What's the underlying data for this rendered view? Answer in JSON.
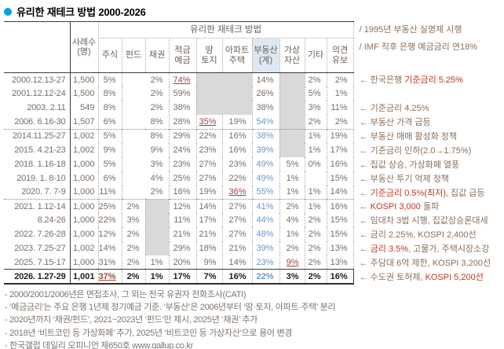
{
  "title": "유리한 재테크 방법 2000-2026",
  "header_notes": [
    "/ 1995년 부동산 실명제 시행",
    "/ IMF 직후 은행 예금금리 연18%"
  ],
  "chart_data": {
    "type": "table",
    "title": "유리한 재테크 방법 2000-2026",
    "group_header": "유리한 재테크 방법",
    "row_header": "사례수\n(명)",
    "columns": [
      {
        "label": "주식"
      },
      {
        "label": "펀드"
      },
      {
        "label": "채권"
      },
      {
        "label": "적금\n예금"
      },
      {
        "label": "땅\n토지"
      },
      {
        "label": "아파트\n주택"
      },
      {
        "label": "부동산\n(계)",
        "highlight": true
      },
      {
        "label": "가상\n자산"
      },
      {
        "label": "기타"
      },
      {
        "label": "의견\n유보"
      }
    ],
    "rows": [
      {
        "date": "2000.12.13-27",
        "n": "1,500",
        "cells": [
          {
            "v": "5%"
          },
          {
            "v": "2%",
            "span": 2
          },
          {
            "v": "74%",
            "s": "red"
          },
          {
            "g": true,
            "span": 2
          },
          {
            "v": "14%"
          },
          {
            "g": true
          },
          {
            "v": "2%"
          },
          {
            "v": "2%"
          }
        ],
        "anno": [
          {
            "t": "← 한국은행 ",
            "c": "brown"
          },
          {
            "t": "기준금리 5.25%",
            "c": "red"
          }
        ]
      },
      {
        "date": "2001.12.12-24",
        "n": "1,500",
        "cells": [
          {
            "v": "8%"
          },
          {
            "v": "2%",
            "span": 2
          },
          {
            "v": "59%"
          },
          {
            "g": true,
            "span": 2
          },
          {
            "v": "26%"
          },
          {
            "g": true
          },
          {
            "v": "5%"
          },
          {
            "v": "1%"
          }
        ],
        "anno": []
      },
      {
        "date": "2003. 2.11",
        "n": "549",
        "cells": [
          {
            "v": "8%"
          },
          {
            "v": "2%",
            "span": 2
          },
          {
            "v": "38%"
          },
          {
            "g": true,
            "span": 2
          },
          {
            "v": "38%"
          },
          {
            "g": true
          },
          {
            "v": "3%"
          },
          {
            "v": "11%"
          }
        ],
        "anno": [
          {
            "t": "← 기준금리 4.25%",
            "c": "brown"
          }
        ]
      },
      {
        "date": "2006. 6.16-30",
        "n": "1,507",
        "cells": [
          {
            "v": "6%"
          },
          {
            "v": "8%",
            "span": 2
          },
          {
            "v": "28%"
          },
          {
            "v": "35%",
            "s": "red"
          },
          {
            "v": "19%"
          },
          {
            "v": "54%",
            "s": "blue"
          },
          {
            "g": true
          },
          {
            "v": "2%"
          },
          {
            "v": "2%"
          }
        ],
        "anno": [
          {
            "t": "← 부동산 가격 급등",
            "c": "brown"
          }
        ]
      },
      {
        "date": "2014.11.25-27",
        "n": "1,002",
        "sep": "dotted",
        "cells": [
          {
            "v": "5%"
          },
          {
            "v": "8%",
            "span": 2
          },
          {
            "v": "29%"
          },
          {
            "v": "22%"
          },
          {
            "v": "16%"
          },
          {
            "v": "38%",
            "s": "blue"
          },
          {
            "g": true
          },
          {
            "v": "1%"
          },
          {
            "v": "19%"
          }
        ],
        "anno": [
          {
            "t": "← 부동산 매매 활성화 정책",
            "c": "brown"
          }
        ]
      },
      {
        "date": "2015. 4.21-23",
        "n": "1,002",
        "cells": [
          {
            "v": "9%"
          },
          {
            "v": "9%",
            "span": 2
          },
          {
            "v": "24%"
          },
          {
            "v": "23%"
          },
          {
            "v": "16%"
          },
          {
            "v": "39%",
            "s": "blue"
          },
          {
            "g": true
          },
          {
            "v": "1%"
          },
          {
            "v": "17%"
          }
        ],
        "anno": [
          {
            "t": "← 기준금리 인하(2.0→1.75%)",
            "c": "brown"
          }
        ]
      },
      {
        "date": "2018. 1.16-18",
        "n": "1,000",
        "cells": [
          {
            "v": "5%"
          },
          {
            "v": "3%",
            "span": 2
          },
          {
            "v": "23%"
          },
          {
            "v": "27%"
          },
          {
            "v": "23%"
          },
          {
            "v": "49%",
            "s": "blue"
          },
          {
            "v": "5%"
          },
          {
            "v": "0%"
          },
          {
            "v": "16%"
          }
        ],
        "anno": [
          {
            "t": "← 집값 상승, 가상화폐 열풍",
            "c": "brown"
          }
        ]
      },
      {
        "date": "2019. 1. 8-10",
        "n": "1,000",
        "cells": [
          {
            "v": "6%"
          },
          {
            "v": "4%",
            "span": 2
          },
          {
            "v": "25%"
          },
          {
            "v": "27%"
          },
          {
            "v": "22%"
          },
          {
            "v": "49%",
            "s": "blue"
          },
          {
            "v": "1%"
          },
          {
            "v": ""
          },
          {
            "v": "15%"
          }
        ],
        "anno": [
          {
            "t": "← 부동산 투기 억제 정책",
            "c": "brown"
          }
        ]
      },
      {
        "date": "2020. 7. 7-9",
        "n": "1,000",
        "cells": [
          {
            "v": "11%"
          },
          {
            "v": "2%",
            "span": 2
          },
          {
            "v": "16%"
          },
          {
            "v": "19%"
          },
          {
            "v": "36%",
            "s": "red"
          },
          {
            "v": "55%",
            "s": "blue"
          },
          {
            "v": "1%"
          },
          {
            "v": "1%"
          },
          {
            "v": "14%"
          }
        ],
        "anno": [
          {
            "t": "← ",
            "c": "brown"
          },
          {
            "t": "기준금리 0.5%(최저)",
            "c": "red"
          },
          {
            "t": ", 집값 급등",
            "c": "brown"
          }
        ]
      },
      {
        "date": "2021. 1.12-14",
        "n": "1,000",
        "sep": "dotted",
        "cells": [
          {
            "v": "25%"
          },
          {
            "v": "2%"
          },
          {
            "g": true
          },
          {
            "v": "12%"
          },
          {
            "v": "14%"
          },
          {
            "v": "27%"
          },
          {
            "v": "41%",
            "s": "blue"
          },
          {
            "v": "2%"
          },
          {
            "v": "1%"
          },
          {
            "v": "16%"
          }
        ],
        "anno": [
          {
            "t": "← ",
            "c": "brown"
          },
          {
            "t": "KOSPI 3,000",
            "c": "red"
          },
          {
            "t": " 돌파",
            "c": "brown"
          }
        ]
      },
      {
        "date": "8.24-26",
        "n": "1,000",
        "cells": [
          {
            "v": "22%"
          },
          {
            "v": "3%"
          },
          {
            "g": true
          },
          {
            "v": "11%"
          },
          {
            "v": "17%"
          },
          {
            "v": "27%"
          },
          {
            "v": "44%",
            "s": "blue"
          },
          {
            "v": "4%"
          },
          {
            "v": "2%"
          },
          {
            "v": "15%"
          }
        ],
        "anno": [
          {
            "t": "← 임대차 3법 시행, 집값상승론대세",
            "c": "brown"
          }
        ]
      },
      {
        "date": "2022. 7.26-28",
        "n": "1,000",
        "cells": [
          {
            "v": "12%"
          },
          {
            "v": "2%"
          },
          {
            "g": true
          },
          {
            "v": "21%"
          },
          {
            "v": "21%"
          },
          {
            "v": "27%"
          },
          {
            "v": "48%",
            "s": "blue"
          },
          {
            "v": "1%"
          },
          {
            "v": "2%"
          },
          {
            "v": "15%"
          }
        ],
        "anno": [
          {
            "t": "← 금리 2.25%, KOSPI 2,400선",
            "c": "brown"
          }
        ]
      },
      {
        "date": "2023. 7.25-27",
        "n": "1,002",
        "cells": [
          {
            "v": "14%"
          },
          {
            "v": "2%"
          },
          {
            "g": true
          },
          {
            "v": "29%"
          },
          {
            "v": "18%"
          },
          {
            "v": "21%"
          },
          {
            "v": "39%",
            "s": "blue"
          },
          {
            "v": "2%"
          },
          {
            "v": "2%"
          },
          {
            "v": "13%"
          }
        ],
        "anno": [
          {
            "t": "← ",
            "c": "brown"
          },
          {
            "t": "금리 3.5%",
            "c": "red"
          },
          {
            "t": ", 고물가, 주택시장소강",
            "c": "brown"
          }
        ]
      },
      {
        "date": "2025. 7.15-17",
        "n": "1,000",
        "cells": [
          {
            "v": "31%"
          },
          {
            "v": "2%"
          },
          {
            "v": "1%"
          },
          {
            "v": "20%"
          },
          {
            "v": "9%"
          },
          {
            "v": "14%"
          },
          {
            "v": "23%",
            "s": "blue"
          },
          {
            "v": "9%",
            "s": "red"
          },
          {
            "v": "2%"
          },
          {
            "v": "13%"
          }
        ],
        "anno": [
          {
            "t": "← 주담대 6억 제한, KOSPI 3,200선",
            "c": "brown"
          }
        ]
      },
      {
        "date": "2026. 1.27-29",
        "n": "1,001",
        "sep": "solid",
        "bold": true,
        "cells": [
          {
            "v": "37%",
            "s": "red"
          },
          {
            "v": "2%"
          },
          {
            "v": "1%"
          },
          {
            "v": "17%"
          },
          {
            "v": "7%"
          },
          {
            "v": "16%"
          },
          {
            "v": "22%",
            "s": "blue"
          },
          {
            "v": "3%"
          },
          {
            "v": "2%"
          },
          {
            "v": "16%"
          }
        ],
        "anno": [
          {
            "t": "← 수도권 토허제, ",
            "c": "brown"
          },
          {
            "t": "KOSPI 5,200선",
            "c": "red"
          }
        ]
      }
    ]
  },
  "footnotes": [
    "- 2000/2001/2006년은 면접조사, 그 외는 전국 유권자 전화조사(CATI)",
    "- ‘예금금리’는 주요 은행 1년제 정기예금 기준. ‘부동산’은 2006년부터 ‘땅·토지, 아파트·주택’ 분리",
    "- 2020년까지 ‘채권/펀드’, 2021~2023년 ‘펀드’만 제시, 2025년 ‘채권’ 추가",
    "- 2018년 ‘비트코인 등 가상화폐’ 추가, 2025년 ‘비트코인 등 가상자산’으로 용어 변경",
    "- 한국갤럽 데일리 오피니언 제650호 www.gallup.co.kr"
  ],
  "colors": {
    "accent_blue": "#6b97c9",
    "accent_red": "#9d4742",
    "anno_brown": "#8a6f58",
    "anno_red": "#c23726",
    "gray_cell": "#d9d9d9",
    "header_highlight": "#dde8f2",
    "bullet_blue": "#00a0e8"
  }
}
